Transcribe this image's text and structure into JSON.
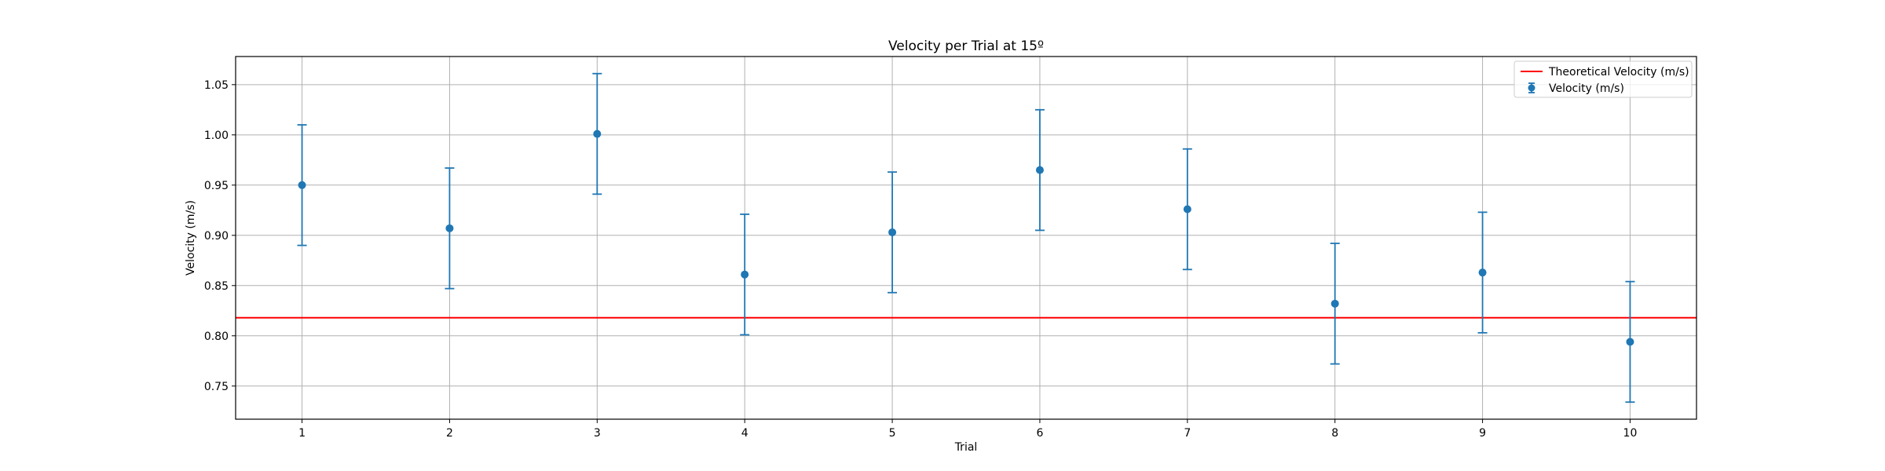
{
  "chart_data": {
    "type": "scatter",
    "title": "Velocity per Trial at 15º",
    "xlabel": "Trial",
    "ylabel": "Velocity (m/s)",
    "xlim": [
      0.55,
      10.45
    ],
    "ylim": [
      0.717,
      1.078
    ],
    "x_ticks": [
      1,
      2,
      3,
      4,
      5,
      6,
      7,
      8,
      9,
      10
    ],
    "y_ticks": [
      0.75,
      0.8,
      0.85,
      0.9,
      0.95,
      1.0,
      1.05
    ],
    "y_tick_labels": [
      "0.75",
      "0.80",
      "0.85",
      "0.90",
      "0.95",
      "1.00",
      "1.05"
    ],
    "grid": true,
    "legend_position": "top-right",
    "series": [
      {
        "name": "Velocity (m/s)",
        "kind": "errorbar",
        "color": "#1f77b4",
        "x": [
          1,
          2,
          3,
          4,
          5,
          6,
          7,
          8,
          9,
          10
        ],
        "y": [
          0.95,
          0.907,
          1.001,
          0.861,
          0.903,
          0.965,
          0.926,
          0.832,
          0.863,
          0.794
        ],
        "yerr": [
          0.06,
          0.06,
          0.06,
          0.06,
          0.06,
          0.06,
          0.06,
          0.06,
          0.06,
          0.06
        ]
      },
      {
        "name": "Theoretical Velocity (m/s)",
        "kind": "hline",
        "color": "#ff0000",
        "y": 0.818
      }
    ]
  }
}
